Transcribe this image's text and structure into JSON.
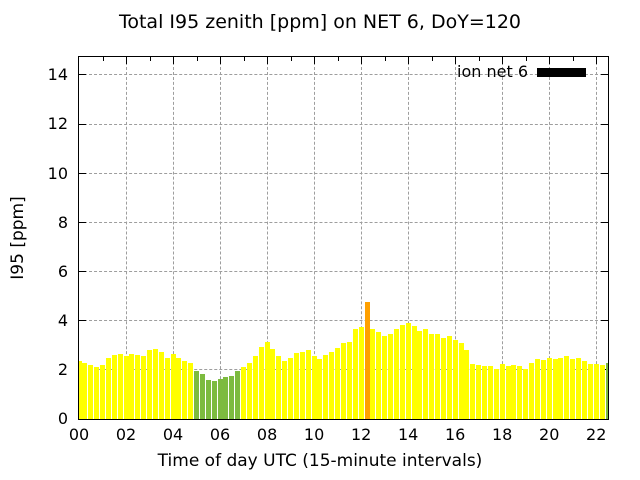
{
  "chart_data": {
    "type": "bar",
    "title": "Total I95 zenith [ppm] on NET 6, DoY=120",
    "xlabel": "Time of day UTC (15-minute intervals)",
    "ylabel": "I95 [ppm]",
    "xlim_hours": [
      0,
      22.5
    ],
    "ylim": [
      0,
      14.75
    ],
    "x_ticks": {
      "major_hours": [
        0,
        2,
        4,
        6,
        8,
        10,
        12,
        14,
        16,
        18,
        20,
        22
      ],
      "labels": [
        "00",
        "02",
        "04",
        "06",
        "08",
        "10",
        "12",
        "14",
        "16",
        "18",
        "20",
        "22"
      ],
      "minor_hours": [
        1,
        3,
        5,
        7,
        9,
        11,
        13,
        15,
        17,
        19,
        21
      ]
    },
    "y_ticks": [
      0,
      2,
      4,
      6,
      8,
      10,
      12,
      14
    ],
    "grid": {
      "visible": true,
      "style": "dashed",
      "color": "#9e9e9e"
    },
    "legend": {
      "label": "ion net 6",
      "swatch_color": "#000000",
      "position": "top-right-inside"
    },
    "colors": {
      "default": "#ffff00",
      "low": "#7dbb3f",
      "peak": "#ffa000"
    },
    "bar_width_hours": 0.21,
    "series": [
      {
        "name": "ion net 6",
        "points": [
          [
            "00:00",
            2.35
          ],
          [
            "00:15",
            2.3
          ],
          [
            "00:30",
            2.2
          ],
          [
            "00:45",
            2.1
          ],
          [
            "01:00",
            2.2
          ],
          [
            "01:15",
            2.5
          ],
          [
            "01:30",
            2.6
          ],
          [
            "01:45",
            2.65
          ],
          [
            "02:00",
            2.55
          ],
          [
            "02:15",
            2.65
          ],
          [
            "02:30",
            2.6
          ],
          [
            "02:45",
            2.55
          ],
          [
            "03:00",
            2.8
          ],
          [
            "03:15",
            2.85
          ],
          [
            "03:30",
            2.75
          ],
          [
            "03:45",
            2.5
          ],
          [
            "04:00",
            2.65
          ],
          [
            "04:15",
            2.5
          ],
          [
            "04:30",
            2.35
          ],
          [
            "04:45",
            2.3
          ],
          [
            "05:00",
            1.95,
            "low"
          ],
          [
            "05:15",
            1.85,
            "low"
          ],
          [
            "05:30",
            1.6,
            "low"
          ],
          [
            "05:45",
            1.55,
            "low"
          ],
          [
            "06:00",
            1.65,
            "low"
          ],
          [
            "06:15",
            1.7,
            "low"
          ],
          [
            "06:30",
            1.75,
            "low"
          ],
          [
            "06:45",
            1.95,
            "low"
          ],
          [
            "07:00",
            2.1
          ],
          [
            "07:15",
            2.3
          ],
          [
            "07:30",
            2.55
          ],
          [
            "07:45",
            2.95
          ],
          [
            "08:00",
            3.15
          ],
          [
            "08:15",
            2.85
          ],
          [
            "08:30",
            2.55
          ],
          [
            "08:45",
            2.35
          ],
          [
            "09:00",
            2.5
          ],
          [
            "09:15",
            2.7
          ],
          [
            "09:30",
            2.75
          ],
          [
            "09:45",
            2.8
          ],
          [
            "10:00",
            2.55
          ],
          [
            "10:15",
            2.45
          ],
          [
            "10:30",
            2.6
          ],
          [
            "10:45",
            2.75
          ],
          [
            "11:00",
            2.9
          ],
          [
            "11:15",
            3.1
          ],
          [
            "11:30",
            3.15
          ],
          [
            "11:45",
            3.65
          ],
          [
            "12:00",
            3.75
          ],
          [
            "12:15",
            4.75,
            "peak"
          ],
          [
            "12:30",
            3.65
          ],
          [
            "12:45",
            3.55
          ],
          [
            "13:00",
            3.4
          ],
          [
            "13:15",
            3.45
          ],
          [
            "13:30",
            3.65
          ],
          [
            "13:45",
            3.85
          ],
          [
            "14:00",
            3.9
          ],
          [
            "14:15",
            3.8
          ],
          [
            "14:30",
            3.6
          ],
          [
            "14:45",
            3.65
          ],
          [
            "15:00",
            3.45
          ],
          [
            "15:15",
            3.45
          ],
          [
            "15:30",
            3.3
          ],
          [
            "15:45",
            3.4
          ],
          [
            "16:00",
            3.2
          ],
          [
            "16:15",
            3.1
          ],
          [
            "16:30",
            2.8
          ],
          [
            "16:45",
            2.25
          ],
          [
            "17:00",
            2.2
          ],
          [
            "17:15",
            2.15
          ],
          [
            "17:30",
            2.15
          ],
          [
            "17:45",
            2.05
          ],
          [
            "18:00",
            2.25
          ],
          [
            "18:15",
            2.15
          ],
          [
            "18:30",
            2.2
          ],
          [
            "18:45",
            2.15
          ],
          [
            "19:00",
            2.05
          ],
          [
            "19:15",
            2.3
          ],
          [
            "19:30",
            2.45
          ],
          [
            "19:45",
            2.4
          ],
          [
            "20:00",
            2.5
          ],
          [
            "20:15",
            2.45
          ],
          [
            "20:30",
            2.5
          ],
          [
            "20:45",
            2.55
          ],
          [
            "21:00",
            2.45
          ],
          [
            "21:15",
            2.5
          ],
          [
            "21:30",
            2.35
          ],
          [
            "21:45",
            2.25
          ],
          [
            "22:00",
            2.25
          ],
          [
            "22:15",
            2.2
          ],
          [
            "22:30",
            2.3,
            "low"
          ]
        ]
      }
    ]
  }
}
